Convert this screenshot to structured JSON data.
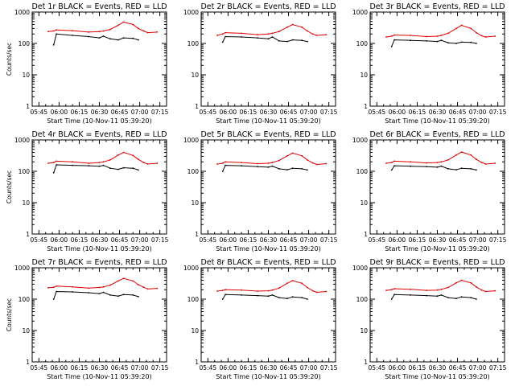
{
  "colors": {
    "events": "#000000",
    "lld": "#e00000",
    "background": "#ffffff",
    "axes": "#000000"
  },
  "chart_data": [
    {
      "type": "line",
      "title": "Det 1r BLACK = Events, RED = LLD",
      "xlabel": "Start Time (10-Nov-11 05:39:20)",
      "ylabel": "Counts/sec",
      "xticks": [
        "05:45",
        "06:00",
        "06:15",
        "06:30",
        "06:45",
        "07:00",
        "07:15"
      ],
      "yticks": [
        "1",
        "10",
        "100",
        "1000"
      ],
      "xlim": [
        "05:40",
        "07:20"
      ],
      "ylim": [
        1,
        1000
      ],
      "yscale": "log",
      "grid": false,
      "x": [
        "05:52",
        "05:56",
        "05:58",
        "06:10",
        "06:22",
        "06:30",
        "06:33",
        "06:38",
        "06:44",
        "06:48",
        "06:55",
        "06:59",
        "07:03",
        "07:06",
        "07:13"
      ],
      "series": [
        {
          "name": "Events",
          "color": "#000000",
          "values": [
            null,
            90,
            200,
            180,
            165,
            150,
            170,
            140,
            130,
            150,
            145,
            130,
            null,
            null,
            null
          ]
        },
        {
          "name": "LLD",
          "color": "#e00000",
          "values": [
            240,
            250,
            270,
            255,
            230,
            240,
            250,
            280,
            380,
            480,
            400,
            300,
            250,
            220,
            230
          ]
        }
      ]
    },
    {
      "type": "line",
      "title": "Det 2r BLACK = Events, RED = LLD",
      "xlabel": "Start Time (10-Nov-11 05:39:20)",
      "ylabel": "",
      "xticks": [
        "05:45",
        "06:00",
        "06:15",
        "06:30",
        "06:45",
        "07:00",
        "07:15"
      ],
      "yticks": [
        "1",
        "10",
        "100",
        "1000"
      ],
      "xlim": [
        "05:40",
        "07:20"
      ],
      "ylim": [
        1,
        1000
      ],
      "yscale": "log",
      "grid": false,
      "x": [
        "05:52",
        "05:56",
        "05:58",
        "06:10",
        "06:22",
        "06:30",
        "06:33",
        "06:38",
        "06:44",
        "06:48",
        "06:55",
        "06:59",
        "07:03",
        "07:06",
        "07:13"
      ],
      "series": [
        {
          "name": "Events",
          "color": "#000000",
          "values": [
            null,
            110,
            165,
            160,
            150,
            140,
            160,
            120,
            115,
            130,
            125,
            115,
            null,
            null,
            null
          ]
        },
        {
          "name": "LLD",
          "color": "#e00000",
          "values": [
            180,
            200,
            220,
            210,
            190,
            200,
            210,
            240,
            330,
            400,
            330,
            250,
            200,
            180,
            190
          ]
        }
      ]
    },
    {
      "type": "line",
      "title": "Det 3r BLACK = Events, RED = LLD",
      "xlabel": "Start Time (10-Nov-11 05:39:20)",
      "ylabel": "",
      "xticks": [
        "05:45",
        "06:00",
        "06:15",
        "06:30",
        "06:45",
        "07:00",
        "07:15"
      ],
      "yticks": [
        "1",
        "10",
        "100",
        "1000"
      ],
      "xlim": [
        "05:40",
        "07:20"
      ],
      "ylim": [
        1,
        1000
      ],
      "yscale": "log",
      "grid": false,
      "x": [
        "05:52",
        "05:56",
        "05:58",
        "06:10",
        "06:22",
        "06:30",
        "06:33",
        "06:38",
        "06:44",
        "06:48",
        "06:55",
        "06:59",
        "07:03",
        "07:06",
        "07:13"
      ],
      "series": [
        {
          "name": "Events",
          "color": "#000000",
          "values": [
            null,
            80,
            130,
            125,
            120,
            115,
            125,
            105,
            100,
            110,
            108,
            100,
            null,
            null,
            null
          ]
        },
        {
          "name": "LLD",
          "color": "#e00000",
          "values": [
            160,
            170,
            185,
            180,
            165,
            170,
            180,
            210,
            300,
            380,
            300,
            220,
            175,
            160,
            170
          ]
        }
      ]
    },
    {
      "type": "line",
      "title": "Det 4r BLACK = Events, RED = LLD",
      "xlabel": "Start Time (10-Nov-11 05:39:20)",
      "ylabel": "Counts/sec",
      "xticks": [
        "05:45",
        "06:00",
        "06:15",
        "06:30",
        "06:45",
        "07:00",
        "07:15"
      ],
      "yticks": [
        "1",
        "10",
        "100",
        "1000"
      ],
      "xlim": [
        "05:40",
        "07:20"
      ],
      "ylim": [
        1,
        1000
      ],
      "yscale": "log",
      "grid": false,
      "x": [
        "05:52",
        "05:56",
        "05:58",
        "06:10",
        "06:22",
        "06:30",
        "06:33",
        "06:38",
        "06:44",
        "06:48",
        "06:55",
        "06:59",
        "07:03",
        "07:06",
        "07:13"
      ],
      "series": [
        {
          "name": "Events",
          "color": "#000000",
          "values": [
            null,
            90,
            160,
            155,
            150,
            145,
            155,
            125,
            115,
            130,
            125,
            110,
            null,
            null,
            null
          ]
        },
        {
          "name": "LLD",
          "color": "#e00000",
          "values": [
            180,
            190,
            210,
            200,
            180,
            190,
            200,
            230,
            330,
            400,
            320,
            240,
            190,
            170,
            180
          ]
        }
      ]
    },
    {
      "type": "line",
      "title": "Det 5r BLACK = Events, RED = LLD",
      "xlabel": "Start Time (10-Nov-11 05:39:20)",
      "ylabel": "",
      "xticks": [
        "05:45",
        "06:00",
        "06:15",
        "06:30",
        "06:45",
        "07:00",
        "07:15"
      ],
      "yticks": [
        "1",
        "10",
        "100",
        "1000"
      ],
      "xlim": [
        "05:40",
        "07:20"
      ],
      "ylim": [
        1,
        1000
      ],
      "yscale": "log",
      "grid": false,
      "x": [
        "05:52",
        "05:56",
        "05:58",
        "06:10",
        "06:22",
        "06:30",
        "06:33",
        "06:38",
        "06:44",
        "06:48",
        "06:55",
        "06:59",
        "07:03",
        "07:06",
        "07:13"
      ],
      "series": [
        {
          "name": "Events",
          "color": "#000000",
          "values": [
            null,
            100,
            155,
            150,
            140,
            135,
            145,
            120,
            112,
            125,
            120,
            110,
            null,
            null,
            null
          ]
        },
        {
          "name": "LLD",
          "color": "#e00000",
          "values": [
            170,
            180,
            200,
            190,
            175,
            180,
            190,
            220,
            310,
            380,
            310,
            230,
            185,
            165,
            175
          ]
        }
      ]
    },
    {
      "type": "line",
      "title": "Det 6r BLACK = Events, RED = LLD",
      "xlabel": "Start Time (10-Nov-11 05:39:20)",
      "ylabel": "",
      "xticks": [
        "05:45",
        "06:00",
        "06:15",
        "06:30",
        "06:45",
        "07:00",
        "07:15"
      ],
      "yticks": [
        "1",
        "10",
        "100",
        "1000"
      ],
      "xlim": [
        "05:40",
        "07:20"
      ],
      "ylim": [
        1,
        1000
      ],
      "yscale": "log",
      "grid": false,
      "x": [
        "05:52",
        "05:56",
        "05:58",
        "06:10",
        "06:22",
        "06:30",
        "06:33",
        "06:38",
        "06:44",
        "06:48",
        "06:55",
        "06:59",
        "07:03",
        "07:06",
        "07:13"
      ],
      "series": [
        {
          "name": "Events",
          "color": "#000000",
          "values": [
            null,
            110,
            150,
            145,
            140,
            135,
            145,
            120,
            112,
            125,
            120,
            110,
            null,
            null,
            null
          ]
        },
        {
          "name": "LLD",
          "color": "#e00000",
          "values": [
            180,
            190,
            210,
            200,
            185,
            190,
            200,
            230,
            330,
            410,
            330,
            240,
            190,
            170,
            180
          ]
        }
      ]
    },
    {
      "type": "line",
      "title": "Det 7r BLACK = Events, RED = LLD",
      "xlabel": "Start Time (10-Nov-11 05:39:20)",
      "ylabel": "Counts/sec",
      "xticks": [
        "05:45",
        "06:00",
        "06:15",
        "06:30",
        "06:45",
        "07:00",
        "07:15"
      ],
      "yticks": [
        "1",
        "10",
        "100",
        "1000"
      ],
      "xlim": [
        "05:40",
        "07:20"
      ],
      "ylim": [
        1,
        1000
      ],
      "yscale": "log",
      "grid": false,
      "x": [
        "05:52",
        "05:56",
        "05:58",
        "06:10",
        "06:22",
        "06:30",
        "06:33",
        "06:38",
        "06:44",
        "06:48",
        "06:55",
        "06:59",
        "07:03",
        "07:06",
        "07:13"
      ],
      "series": [
        {
          "name": "Events",
          "color": "#000000",
          "values": [
            null,
            100,
            175,
            170,
            160,
            150,
            165,
            135,
            125,
            140,
            135,
            120,
            null,
            null,
            null
          ]
        },
        {
          "name": "LLD",
          "color": "#e00000",
          "values": [
            230,
            240,
            260,
            245,
            225,
            235,
            245,
            280,
            380,
            460,
            380,
            290,
            240,
            210,
            220
          ]
        }
      ]
    },
    {
      "type": "line",
      "title": "Det 8r BLACK = Events, RED = LLD",
      "xlabel": "Start Time (10-Nov-11 05:39:20)",
      "ylabel": "",
      "xticks": [
        "05:45",
        "06:00",
        "06:15",
        "06:30",
        "06:45",
        "07:00",
        "07:15"
      ],
      "yticks": [
        "1",
        "10",
        "100",
        "1000"
      ],
      "xlim": [
        "05:40",
        "07:20"
      ],
      "ylim": [
        1,
        1000
      ],
      "yscale": "log",
      "grid": false,
      "x": [
        "05:52",
        "05:56",
        "05:58",
        "06:10",
        "06:22",
        "06:30",
        "06:33",
        "06:38",
        "06:44",
        "06:48",
        "06:55",
        "06:59",
        "07:03",
        "07:06",
        "07:13"
      ],
      "series": [
        {
          "name": "Events",
          "color": "#000000",
          "values": [
            null,
            100,
            140,
            135,
            130,
            125,
            135,
            112,
            105,
            118,
            112,
            100,
            null,
            null,
            null
          ]
        },
        {
          "name": "LLD",
          "color": "#e00000",
          "values": [
            180,
            190,
            200,
            195,
            180,
            185,
            195,
            225,
            320,
            390,
            320,
            235,
            185,
            165,
            175
          ]
        }
      ]
    },
    {
      "type": "line",
      "title": "Det 9r BLACK = Events, RED = LLD",
      "xlabel": "Start Time (10-Nov-11 05:39:20)",
      "ylabel": "",
      "xticks": [
        "05:45",
        "06:00",
        "06:15",
        "06:30",
        "06:45",
        "07:00",
        "07:15"
      ],
      "yticks": [
        "1",
        "10",
        "100",
        "1000"
      ],
      "xlim": [
        "05:40",
        "07:20"
      ],
      "ylim": [
        1,
        1000
      ],
      "yscale": "log",
      "grid": false,
      "x": [
        "05:52",
        "05:56",
        "05:58",
        "06:10",
        "06:22",
        "06:30",
        "06:33",
        "06:38",
        "06:44",
        "06:48",
        "06:55",
        "06:59",
        "07:03",
        "07:06",
        "07:13"
      ],
      "series": [
        {
          "name": "Events",
          "color": "#000000",
          "values": [
            null,
            100,
            140,
            135,
            130,
            125,
            135,
            112,
            105,
            118,
            112,
            100,
            null,
            null,
            null
          ]
        },
        {
          "name": "LLD",
          "color": "#e00000",
          "values": [
            190,
            200,
            215,
            205,
            190,
            195,
            205,
            235,
            330,
            400,
            330,
            245,
            195,
            175,
            185
          ]
        }
      ]
    }
  ]
}
